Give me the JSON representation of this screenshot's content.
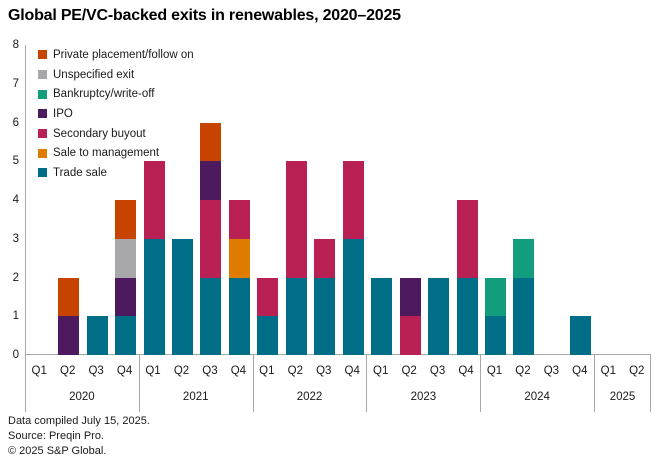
{
  "title": "Global PE/VC-backed exits in renewables, 2020–2025",
  "footnotes": [
    "Data compiled July 15, 2025.",
    "Source: Preqin Pro.",
    "© 2025 S&P Global."
  ],
  "colors": {
    "text": "#1a1a1a",
    "axis_line": "#a7a7a7",
    "background": "#ffffff"
  },
  "chart_data": {
    "type": "bar",
    "stacked": true,
    "title": "Global PE/VC-backed exits in renewables, 2020–2025",
    "xlabel": "",
    "ylabel": "",
    "ylim": [
      0,
      8
    ],
    "y_ticks": [
      0,
      1,
      2,
      3,
      4,
      5,
      6,
      7,
      8
    ],
    "grid": false,
    "legend_position": "top-left-inside",
    "legend": [
      {
        "key": "private_placement",
        "label": "Private placement/follow on",
        "color": "#c64400"
      },
      {
        "key": "unspecified",
        "label": "Unspecified exit",
        "color": "#a8a8aa"
      },
      {
        "key": "bankruptcy",
        "label": "Bankruptcy/write-off",
        "color": "#129e7d"
      },
      {
        "key": "ipo",
        "label": "IPO",
        "color": "#4e1a5f"
      },
      {
        "key": "secondary_buyout",
        "label": "Secondary buyout",
        "color": "#b92155"
      },
      {
        "key": "sale_to_management",
        "label": "Sale to management",
        "color": "#de7c00"
      },
      {
        "key": "trade_sale",
        "label": "Trade sale",
        "color": "#006e87"
      }
    ],
    "stack_order_bottom_to_top": [
      "trade_sale",
      "sale_to_management",
      "secondary_buyout",
      "ipo",
      "bankruptcy",
      "unspecified",
      "private_placement"
    ],
    "groups": [
      {
        "year": "2020",
        "quarters": [
          "Q1",
          "Q2",
          "Q3",
          "Q4"
        ]
      },
      {
        "year": "2021",
        "quarters": [
          "Q1",
          "Q2",
          "Q3",
          "Q4"
        ]
      },
      {
        "year": "2022",
        "quarters": [
          "Q1",
          "Q2",
          "Q3",
          "Q4"
        ]
      },
      {
        "year": "2023",
        "quarters": [
          "Q1",
          "Q2",
          "Q3",
          "Q4"
        ]
      },
      {
        "year": "2024",
        "quarters": [
          "Q1",
          "Q2",
          "Q3",
          "Q4"
        ]
      },
      {
        "year": "2025",
        "quarters": [
          "Q1",
          "Q2"
        ]
      }
    ],
    "bars": [
      {
        "year": "2020",
        "quarter": "Q1",
        "total": 0,
        "segments": {}
      },
      {
        "year": "2020",
        "quarter": "Q2",
        "total": 2,
        "segments": {
          "ipo": 1,
          "private_placement": 1
        }
      },
      {
        "year": "2020",
        "quarter": "Q3",
        "total": 1,
        "segments": {
          "trade_sale": 1
        }
      },
      {
        "year": "2020",
        "quarter": "Q4",
        "total": 4,
        "segments": {
          "trade_sale": 1,
          "ipo": 1,
          "unspecified": 1,
          "private_placement": 1
        }
      },
      {
        "year": "2021",
        "quarter": "Q1",
        "total": 5,
        "segments": {
          "trade_sale": 3,
          "secondary_buyout": 2
        }
      },
      {
        "year": "2021",
        "quarter": "Q2",
        "total": 3,
        "segments": {
          "trade_sale": 3
        }
      },
      {
        "year": "2021",
        "quarter": "Q3",
        "total": 6,
        "segments": {
          "trade_sale": 2,
          "secondary_buyout": 2,
          "ipo": 1,
          "private_placement": 1
        }
      },
      {
        "year": "2021",
        "quarter": "Q4",
        "total": 4,
        "segments": {
          "trade_sale": 2,
          "sale_to_management": 1,
          "secondary_buyout": 1
        }
      },
      {
        "year": "2022",
        "quarter": "Q1",
        "total": 2,
        "segments": {
          "trade_sale": 1,
          "secondary_buyout": 1
        }
      },
      {
        "year": "2022",
        "quarter": "Q2",
        "total": 5,
        "segments": {
          "trade_sale": 2,
          "secondary_buyout": 3
        }
      },
      {
        "year": "2022",
        "quarter": "Q3",
        "total": 3,
        "segments": {
          "trade_sale": 2,
          "secondary_buyout": 1
        }
      },
      {
        "year": "2022",
        "quarter": "Q4",
        "total": 5,
        "segments": {
          "trade_sale": 3,
          "secondary_buyout": 2
        }
      },
      {
        "year": "2023",
        "quarter": "Q1",
        "total": 2,
        "segments": {
          "trade_sale": 2
        }
      },
      {
        "year": "2023",
        "quarter": "Q2",
        "total": 2,
        "segments": {
          "secondary_buyout": 1,
          "ipo": 1
        }
      },
      {
        "year": "2023",
        "quarter": "Q3",
        "total": 2,
        "segments": {
          "trade_sale": 2
        }
      },
      {
        "year": "2023",
        "quarter": "Q4",
        "total": 4,
        "segments": {
          "trade_sale": 2,
          "secondary_buyout": 2
        }
      },
      {
        "year": "2024",
        "quarter": "Q1",
        "total": 2,
        "segments": {
          "trade_sale": 1,
          "bankruptcy": 1
        }
      },
      {
        "year": "2024",
        "quarter": "Q2",
        "total": 3,
        "segments": {
          "trade_sale": 2,
          "bankruptcy": 1
        }
      },
      {
        "year": "2024",
        "quarter": "Q3",
        "total": 0,
        "segments": {}
      },
      {
        "year": "2024",
        "quarter": "Q4",
        "total": 1,
        "segments": {
          "trade_sale": 1
        }
      },
      {
        "year": "2025",
        "quarter": "Q1",
        "total": 0,
        "segments": {}
      },
      {
        "year": "2025",
        "quarter": "Q2",
        "total": 0,
        "segments": {}
      }
    ]
  }
}
